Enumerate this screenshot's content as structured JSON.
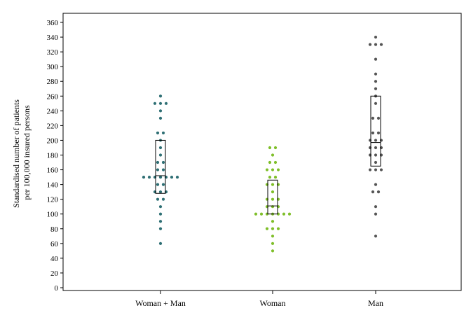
{
  "chart_data": {
    "type": "scatter",
    "subtype": "dot-plot-with-box",
    "ylabel_lines": [
      "Standardised number of patients",
      "per 100,000 insured persons"
    ],
    "ylim": [
      0,
      370
    ],
    "yticks": [
      0,
      20,
      40,
      60,
      80,
      100,
      120,
      140,
      160,
      180,
      200,
      220,
      240,
      260,
      280,
      300,
      320,
      340,
      360
    ],
    "grid": false,
    "categories": [
      "Woman + Man",
      "Woman",
      "Man"
    ],
    "series": [
      {
        "category": "Woman + Man",
        "color": "#2e6f74",
        "box": {
          "q1": 128,
          "median": 152,
          "q3": 200
        },
        "points": [
          260,
          250,
          250,
          250,
          240,
          230,
          210,
          210,
          200,
          190,
          180,
          170,
          170,
          160,
          160,
          150,
          150,
          150,
          150,
          150,
          150,
          150,
          140,
          140,
          130,
          130,
          130,
          120,
          120,
          110,
          100,
          90,
          80,
          60
        ]
      },
      {
        "category": "Woman",
        "color": "#7fbf2a",
        "box": {
          "q1": 100,
          "median": 111,
          "q3": 146
        },
        "points": [
          190,
          190,
          180,
          170,
          170,
          160,
          160,
          160,
          150,
          150,
          140,
          140,
          140,
          130,
          120,
          120,
          120,
          110,
          110,
          110,
          100,
          100,
          100,
          100,
          100,
          100,
          100,
          90,
          80,
          80,
          80,
          70,
          60,
          50
        ]
      },
      {
        "category": "Man",
        "color": "#555555",
        "box": {
          "q1": 165,
          "median": 197,
          "q3": 260
        },
        "points": [
          340,
          330,
          330,
          330,
          310,
          290,
          280,
          270,
          260,
          250,
          230,
          230,
          210,
          210,
          200,
          200,
          200,
          190,
          190,
          190,
          180,
          180,
          180,
          170,
          160,
          160,
          160,
          140,
          130,
          130,
          110,
          100,
          70
        ]
      }
    ]
  }
}
